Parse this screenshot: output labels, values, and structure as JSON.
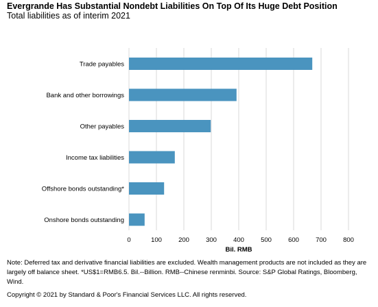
{
  "chart_data": {
    "type": "bar",
    "orientation": "horizontal",
    "title": "Evergrande Has Substantial Nondebt Liabilities On Top Of Its Huge Debt Position",
    "subtitle": "Total liabilities as of interim 2021",
    "categories": [
      "Trade payables",
      "Bank and other borrowings",
      "Other payables",
      "Income tax liabilities",
      "Offshore bonds outstanding*",
      "Onshore bonds outstanding"
    ],
    "values": [
      668,
      392,
      298,
      167,
      128,
      57
    ],
    "xlabel": "Bil. RMB",
    "xlim": [
      0,
      800
    ],
    "xticks": [
      "0",
      "100",
      "200",
      "300",
      "400",
      "500",
      "600",
      "700",
      "800"
    ],
    "grid": true,
    "bar_color": "#4a94bf",
    "grid_color": "#d9d9d9"
  },
  "note": "Note: Deferred tax and derivative financial liabilities are excluded. Wealth management products are not included as they are largely off balance sheet. *US$1=RMB6.5. Bil.--Billion. RMB--Chinese renminbi. Source: S&P Global Ratings, Bloomberg, Wind.",
  "copyright": "Copyright © 2021 by Standard & Poor's Financial Services LLC. All rights reserved."
}
